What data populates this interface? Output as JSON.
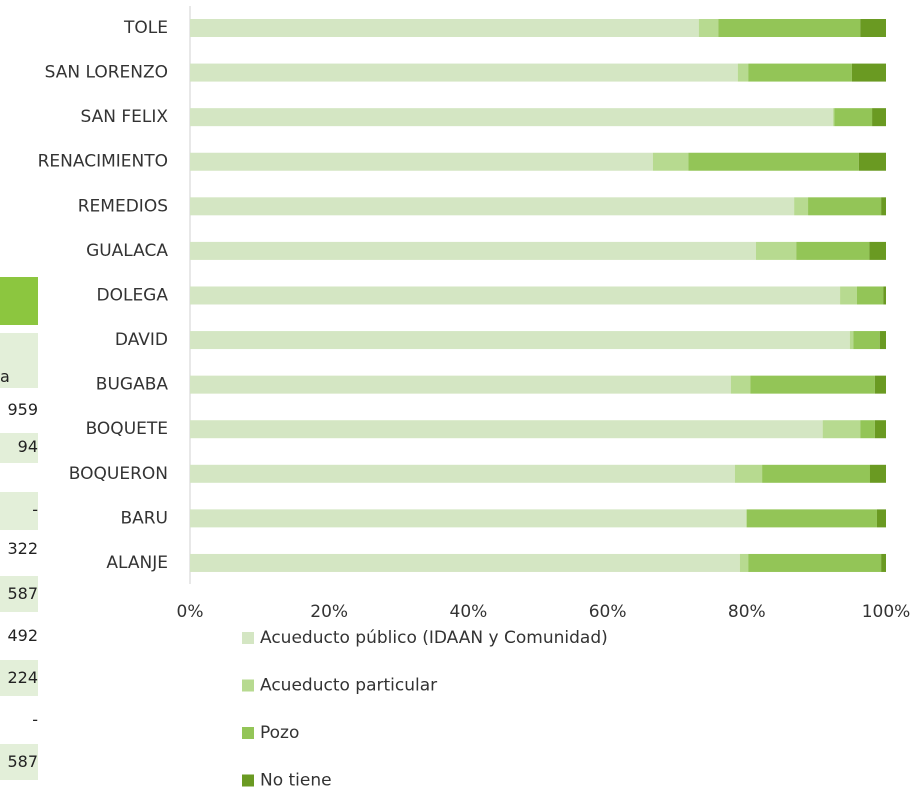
{
  "chart_data": {
    "type": "bar",
    "orientation": "horizontal",
    "stacked": true,
    "categories": [
      "TOLE",
      "SAN LORENZO",
      "SAN FELIX",
      "RENACIMIENTO",
      "REMEDIOS",
      "GUALACA",
      "DOLEGA",
      "DAVID",
      "BUGABA",
      "BOQUETE",
      "BOQUERON",
      "BARU",
      "ALANJE"
    ],
    "series": [
      {
        "name": "Acueducto público (IDAAN y Comunidad)",
        "color": "#d4e6c3",
        "values": [
          73.1,
          78.7,
          92.4,
          66.5,
          86.8,
          81.3,
          93.4,
          94.8,
          77.7,
          90.9,
          78.3,
          79.9,
          79.0
        ]
      },
      {
        "name": "Acueducto particular",
        "color": "#b7da90",
        "values": [
          2.8,
          1.5,
          0.2,
          5.1,
          2.0,
          5.8,
          2.4,
          0.5,
          2.8,
          5.4,
          3.9,
          0.1,
          1.2
        ]
      },
      {
        "name": "Pozo",
        "color": "#93c557",
        "values": [
          20.4,
          14.9,
          5.4,
          24.5,
          10.5,
          10.5,
          3.8,
          3.8,
          17.9,
          2.1,
          15.5,
          18.7,
          19.1
        ]
      },
      {
        "name": "No tiene",
        "color": "#6a9a22",
        "values": [
          3.7,
          4.9,
          2.0,
          3.9,
          0.7,
          2.4,
          0.4,
          0.9,
          1.6,
          1.6,
          2.3,
          1.3,
          0.7
        ]
      }
    ],
    "xlim": [
      0,
      100
    ],
    "xticks": [
      {
        "value": 0,
        "label": "0%"
      },
      {
        "value": 20,
        "label": "20%"
      },
      {
        "value": 40,
        "label": "40%"
      },
      {
        "value": 60,
        "label": "60%"
      },
      {
        "value": 80,
        "label": "80%"
      },
      {
        "value": 100,
        "label": "100%"
      }
    ],
    "legend": "bottom"
  },
  "side_table": {
    "cells": [
      "a",
      "959",
      "94",
      "-",
      "322",
      "587",
      "492",
      "224",
      "-",
      "587"
    ]
  }
}
